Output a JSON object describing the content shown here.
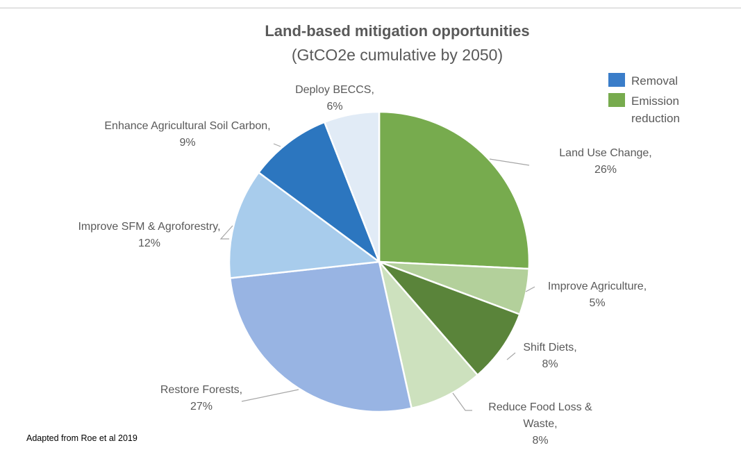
{
  "chart_data": {
    "type": "pie",
    "title": "Land-based mitigation opportunities",
    "subtitle": "(GtCO2e cumulative by 2050)",
    "legend": {
      "placement": "top-right",
      "items": [
        {
          "name": "Removal",
          "color": "#3a7dc9"
        },
        {
          "name": "Emission",
          "name_line2": "reduction",
          "color": "#77ab4e"
        }
      ]
    },
    "slices": [
      {
        "label": "Land Use Change,",
        "pct_text": "26%",
        "value": 26,
        "category": "Emission reduction",
        "color": "#77ab4e"
      },
      {
        "label": "Improve Agriculture,",
        "pct_text": "5%",
        "value": 5,
        "category": "Emission reduction",
        "color": "#b3d09b"
      },
      {
        "label": "Shift Diets,",
        "pct_text": "8%",
        "value": 8,
        "category": "Emission reduction",
        "color": "#5a843a"
      },
      {
        "label": "Reduce Food Loss &",
        "label_line2": "Waste,",
        "pct_text": "8%",
        "value": 8,
        "category": "Emission reduction",
        "color": "#cde1be"
      },
      {
        "label": "Restore Forests,",
        "pct_text": "27%",
        "value": 27,
        "category": "Removal",
        "color": "#98b4e3"
      },
      {
        "label": "Improve SFM & Agroforestry,",
        "pct_text": "12%",
        "value": 12,
        "category": "Removal",
        "color": "#a8ccec"
      },
      {
        "label": "Enhance Agricultural Soil Carbon,",
        "pct_text": "9%",
        "value": 9,
        "category": "Removal",
        "color": "#2c76bf"
      },
      {
        "label": "Deploy BECCS,",
        "pct_text": "6%",
        "value": 6,
        "category": "Removal",
        "color": "#e1ebf6"
      }
    ]
  },
  "footer": {
    "source": "Adapted from Roe et al 2019"
  }
}
